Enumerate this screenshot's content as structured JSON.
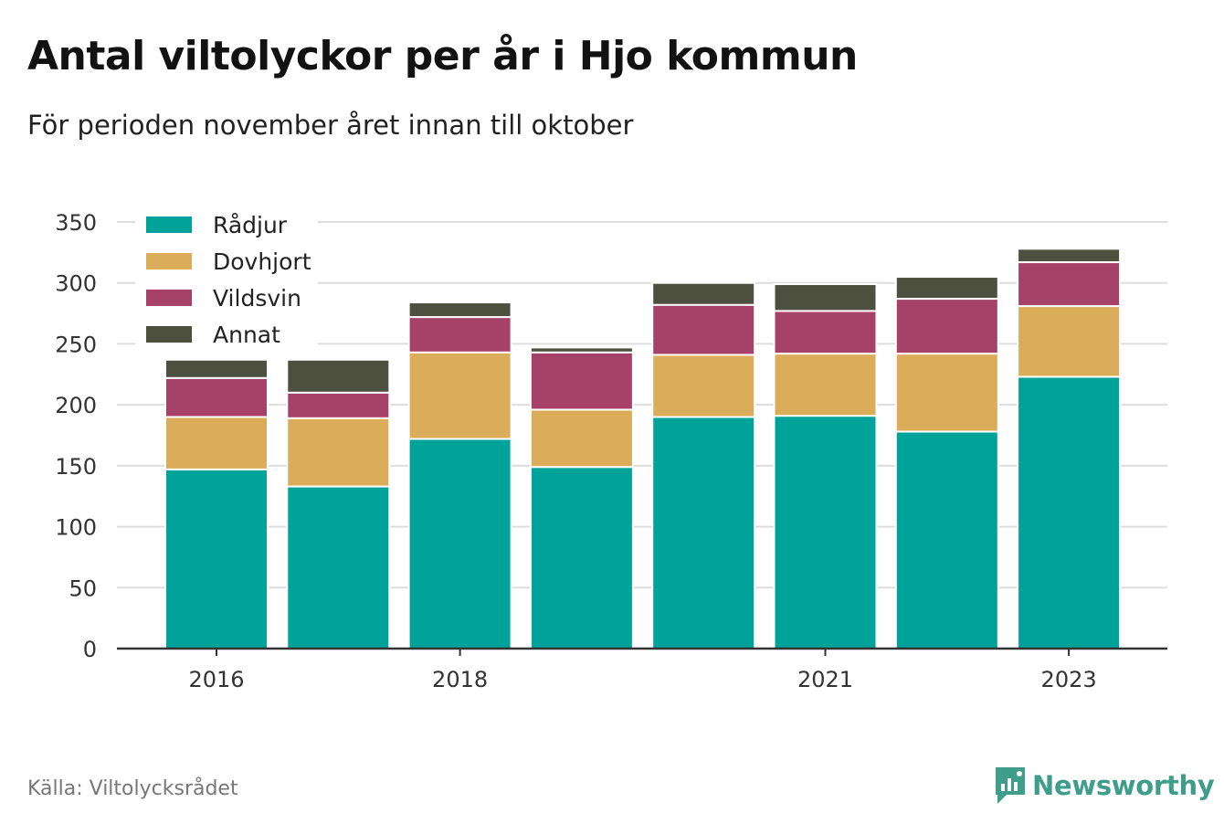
{
  "title": "Antal viltolyckor per år i Hjo kommun",
  "subtitle": "För perioden november året innan till oktober",
  "source": "Källa: Viltolycksrådet",
  "brand": "Newsworthy",
  "colors": {
    "Rådjur": "#00a39a",
    "Dovhjort": "#dbac5a",
    "Vildsvin": "#a64168",
    "Annat": "#4d4f3f",
    "grid": "#dddddd",
    "axis": "#333333",
    "brand": "#3f9e8a"
  },
  "chart_data": {
    "type": "bar",
    "stacked": true,
    "categories": [
      "2016",
      "2017",
      "2018",
      "2019",
      "2020",
      "2021",
      "2022",
      "2023"
    ],
    "x_tick_labels": [
      "2016",
      "2018",
      "2021",
      "2023"
    ],
    "series": [
      {
        "name": "Rådjur",
        "values": [
          147,
          133,
          172,
          149,
          190,
          191,
          178,
          223
        ]
      },
      {
        "name": "Dovhjort",
        "values": [
          43,
          56,
          71,
          47,
          51,
          51,
          64,
          58
        ]
      },
      {
        "name": "Vildsvin",
        "values": [
          32,
          21,
          29,
          47,
          41,
          35,
          45,
          36
        ]
      },
      {
        "name": "Annat",
        "values": [
          15,
          27,
          12,
          4,
          18,
          22,
          18,
          11
        ]
      }
    ],
    "ylim": [
      0,
      350
    ],
    "y_ticks": [
      0,
      50,
      100,
      150,
      200,
      250,
      300,
      350
    ],
    "grid": true,
    "legend_position": "top-left"
  }
}
